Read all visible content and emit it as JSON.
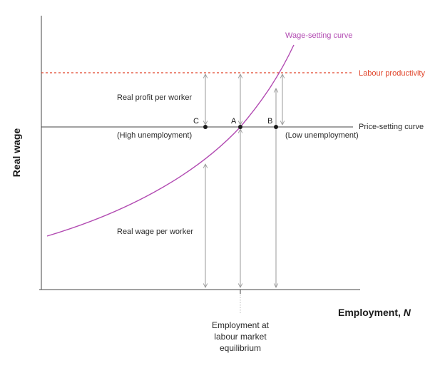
{
  "labels": {
    "wage_curve": "Wage-setting curve",
    "productivity": "Labour productivity",
    "price_curve": "Price-setting curve",
    "real_profit": "Real profit per worker",
    "real_wage_per_worker": "Real wage per worker",
    "high_unemployment": "(High unemployment)",
    "low_unemployment": "(Low unemployment)",
    "point_a": "A",
    "point_b": "B",
    "point_c": "C",
    "y_axis": "Real wage",
    "x_axis_main": "Employment, ",
    "x_axis_var": "N",
    "equilibrium_line1": "Employment at",
    "equilibrium_line2": "labour market",
    "equilibrium_line3": "equilibrium"
  },
  "colors": {
    "wage_curve": "#b24bb2",
    "productivity": "#e0452b",
    "axis": "#444444",
    "arrow": "#9a9a9a",
    "point": "#1a1a1a"
  }
}
